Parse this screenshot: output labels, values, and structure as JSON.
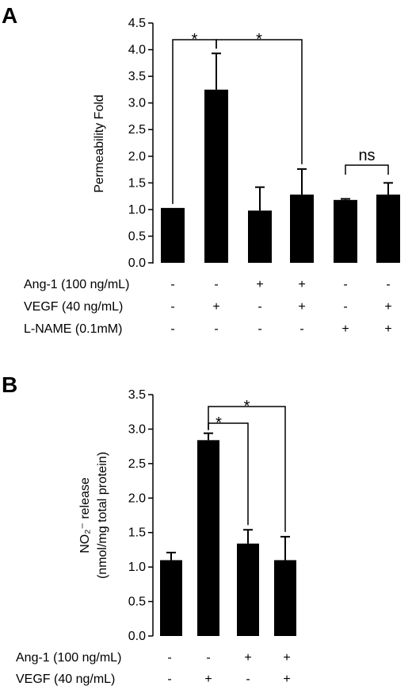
{
  "chart_data": [
    {
      "type": "bar",
      "panel_label": "A",
      "ylabel": "Permeability Fold",
      "ylim": [
        0,
        4.5
      ],
      "yticks": [
        "0.0",
        "0.5",
        "1.0",
        "1.5",
        "2.0",
        "2.5",
        "3.0",
        "3.5",
        "4.0",
        "4.5"
      ],
      "values": [
        1.03,
        3.25,
        0.98,
        1.28,
        1.18,
        1.28
      ],
      "errors": [
        0.0,
        0.68,
        0.44,
        0.48,
        0.02,
        0.22
      ],
      "bar_color": "#000000",
      "conditions": [
        {
          "label": "Ang-1 (100 ng/mL)",
          "signs": [
            "-",
            "-",
            "+",
            "+",
            "-",
            "-"
          ]
        },
        {
          "label": "VEGF (40 ng/mL)",
          "signs": [
            "-",
            "+",
            "-",
            "+",
            "-",
            "+"
          ]
        },
        {
          "label": "L-NAME (0.1mM)",
          "signs": [
            "-",
            "-",
            "-",
            "-",
            "+",
            "+"
          ]
        }
      ],
      "significance": [
        {
          "from": 0,
          "to": 1,
          "label": "*"
        },
        {
          "from": 1,
          "to": 3,
          "label": "*"
        },
        {
          "from": 4,
          "to": 5,
          "label": "ns"
        }
      ]
    },
    {
      "type": "bar",
      "panel_label": "B",
      "ylabel_line1": "NO₂⁻ release",
      "ylabel_line2": "(nmol/mg total protein)",
      "ylim": [
        0,
        3.5
      ],
      "yticks": [
        "0.0",
        "0.5",
        "1.0",
        "1.5",
        "2.0",
        "2.5",
        "3.0",
        "3.5"
      ],
      "values": [
        1.1,
        2.84,
        1.34,
        1.1
      ],
      "errors": [
        0.11,
        0.1,
        0.2,
        0.34
      ],
      "bar_color": "#000000",
      "conditions": [
        {
          "label": "Ang-1 (100 ng/mL)",
          "signs": [
            "-",
            "-",
            "+",
            "+"
          ]
        },
        {
          "label": "VEGF (40 ng/mL)",
          "signs": [
            "-",
            "+",
            "-",
            "+"
          ]
        }
      ],
      "significance": [
        {
          "from": 1,
          "to": 2,
          "label": "*"
        },
        {
          "from": 1,
          "to": 3,
          "label": "*"
        }
      ]
    }
  ]
}
